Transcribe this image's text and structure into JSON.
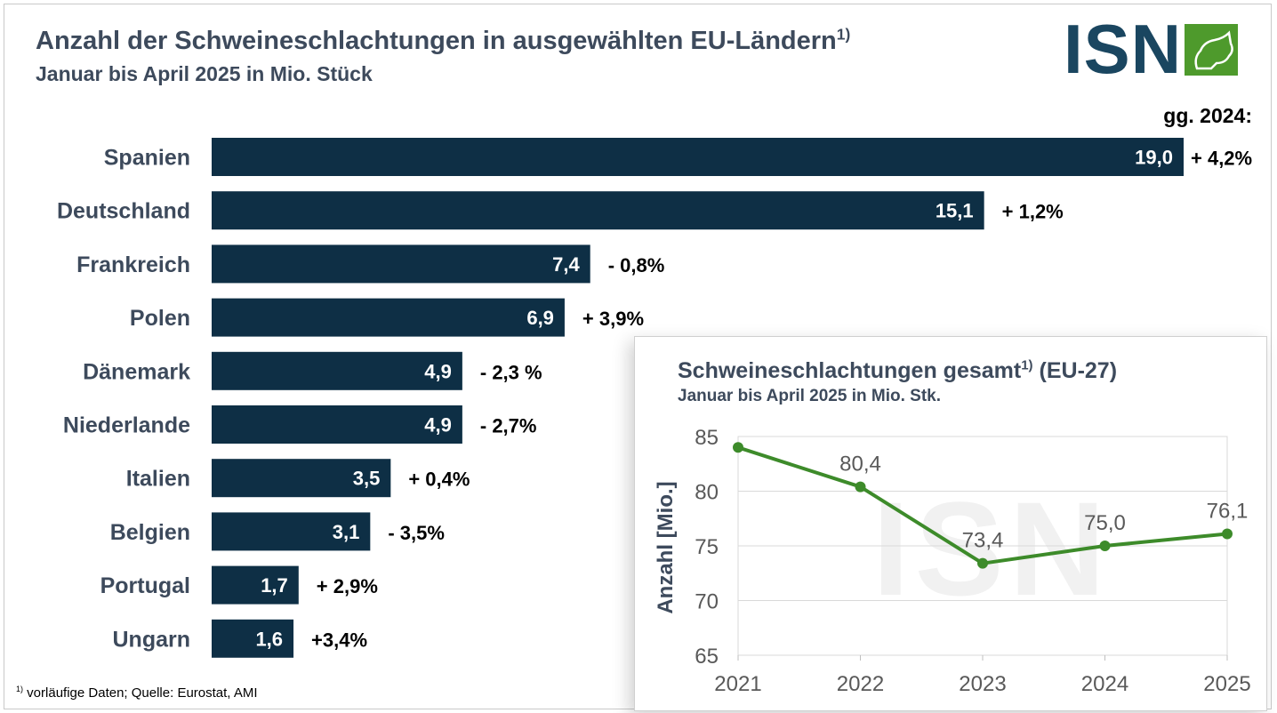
{
  "header": {
    "title": "Anzahl der Schweineschlachtungen in ausgewählten EU-Ländern",
    "title_sup": "1)",
    "subtitle": "Januar bis April 2025 in Mio. Stück",
    "change_header": "gg. 2024:"
  },
  "logo": {
    "text": "ISN",
    "color": "#1a4660",
    "accent": "#4e9a2c"
  },
  "footnote": {
    "marker": "1)",
    "text": " vorläufige Daten; Quelle: Eurostat, AMI"
  },
  "colors": {
    "bar": "#0e2f45",
    "line": "#3d8b2a",
    "text": "#3d4a5c"
  },
  "chart_data": [
    {
      "type": "bar",
      "orientation": "horizontal",
      "categories": [
        "Spanien",
        "Deutschland",
        "Frankreich",
        "Polen",
        "Dänemark",
        "Niederlande",
        "Italien",
        "Belgien",
        "Portugal",
        "Ungarn"
      ],
      "values": [
        19.0,
        15.1,
        7.4,
        6.9,
        4.9,
        4.9,
        3.5,
        3.1,
        1.7,
        1.6
      ],
      "value_labels": [
        "19,0",
        "15,1",
        "7,4",
        "6,9",
        "4,9",
        "4,9",
        "3,5",
        "3,1",
        "1,7",
        "1,6"
      ],
      "change_labels": [
        "+ 4,2%",
        "+ 1,2%",
        "- 0,8%",
        "+ 3,9%",
        "- 2,3 %",
        "- 2,7%",
        "+ 0,4%",
        "- 3,5%",
        "+ 2,9%",
        "+3,4%"
      ],
      "xlim": [
        0,
        19.0
      ]
    },
    {
      "type": "line",
      "title": "Schweineschlachtungen gesamt",
      "title_sup": "1)",
      "title_suffix": " (EU-27)",
      "subtitle": "Januar bis April 2025 in Mio. Stk.",
      "ylabel": "Anzahl [Mio.]",
      "x": [
        "2021",
        "2022",
        "2023",
        "2024",
        "2025"
      ],
      "y": [
        84.0,
        80.4,
        73.4,
        75.0,
        76.1
      ],
      "point_labels": [
        "",
        "80,4",
        "73,4",
        "75,0",
        "76,1"
      ],
      "ylim": [
        65,
        85
      ],
      "yticks": [
        "65",
        "70",
        "75",
        "80",
        "85"
      ],
      "grid": true,
      "watermark": "ISN"
    }
  ]
}
